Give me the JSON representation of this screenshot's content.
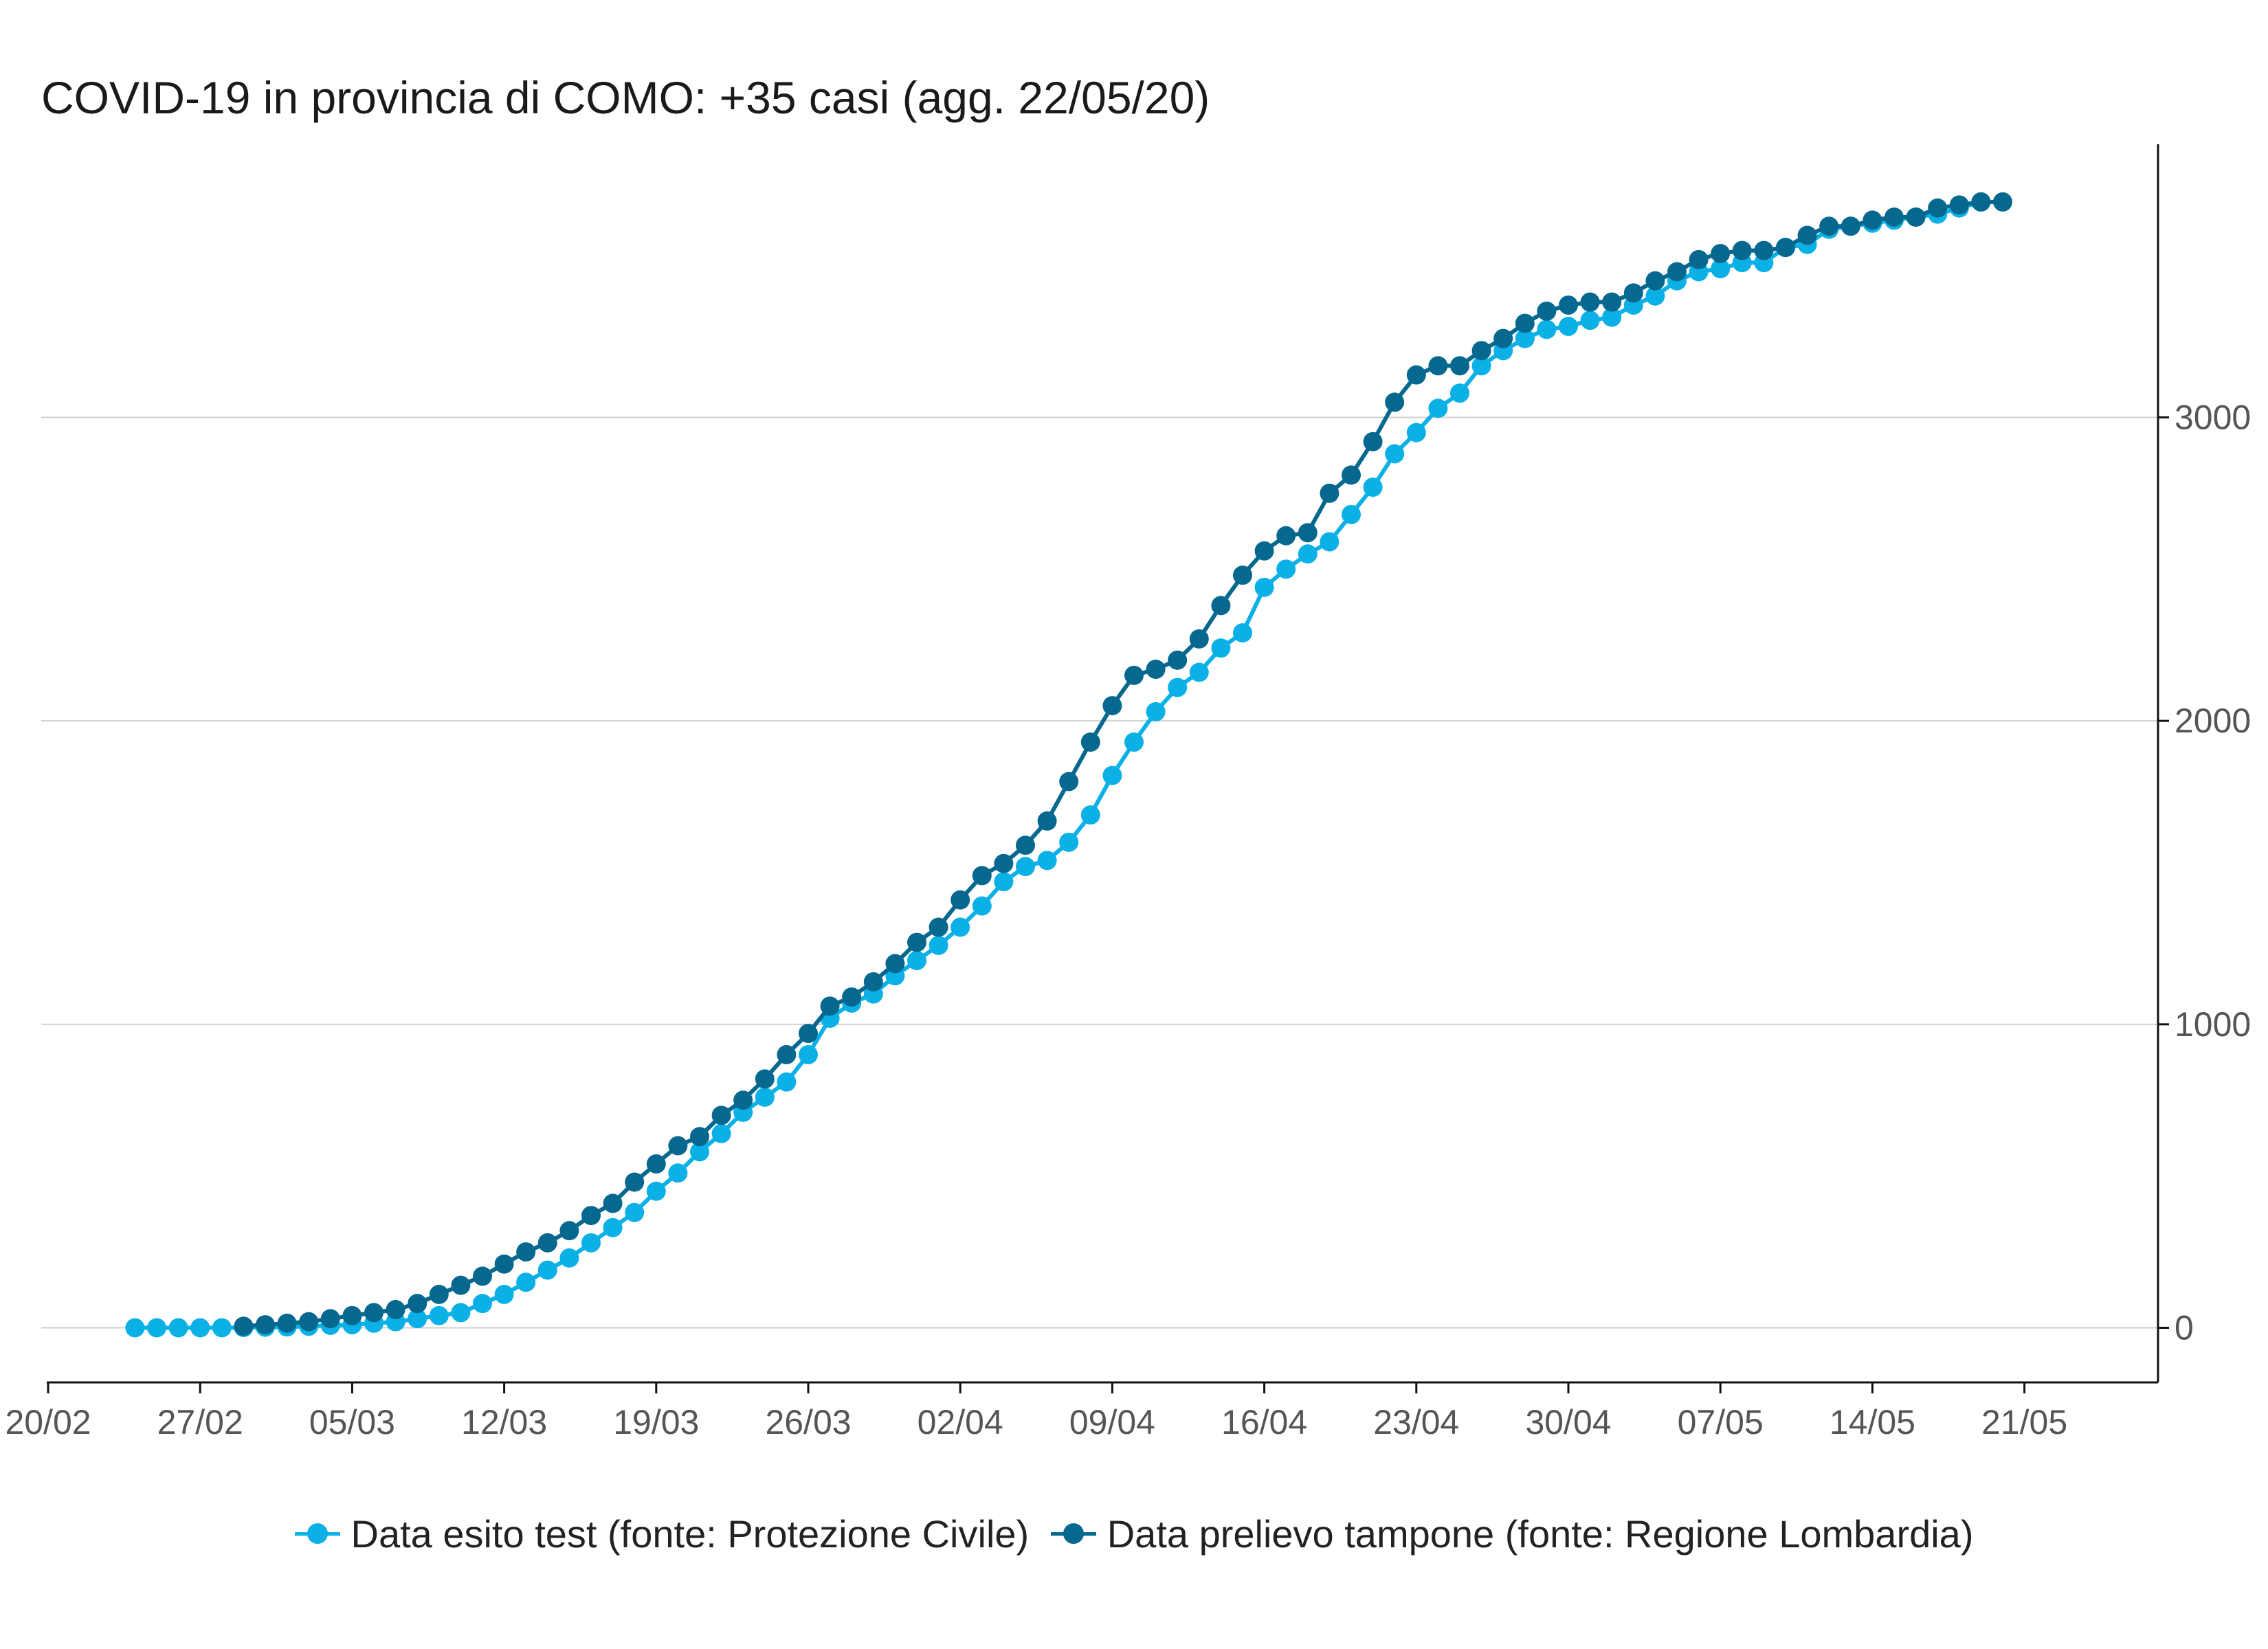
{
  "chart_data": {
    "type": "line",
    "title": "COVID-19 in provincia di COMO: +35 casi (agg. 22/05/20)",
    "x_start_date": "2020-02-24",
    "x_tick_labels": [
      "20/02",
      "27/02",
      "05/03",
      "12/03",
      "19/03",
      "26/03",
      "02/04",
      "09/04",
      "16/04",
      "23/04",
      "30/04",
      "07/05",
      "14/05",
      "21/05"
    ],
    "y_tick_labels": [
      "0",
      "1000",
      "2000",
      "3000"
    ],
    "y_axis_position": "right",
    "ylim": [
      -180,
      3900
    ],
    "grid": "horizontal",
    "legend_position": "bottom",
    "series": [
      {
        "name": "Data esito test (fonte: Protezione Civile)",
        "color": "#0ab0e6",
        "values": [
          0,
          0,
          0,
          0,
          0,
          1,
          2,
          3,
          5,
          8,
          10,
          15,
          20,
          30,
          40,
          50,
          80,
          110,
          150,
          190,
          230,
          280,
          330,
          380,
          450,
          510,
          580,
          640,
          710,
          760,
          810,
          900,
          1020,
          1070,
          1100,
          1160,
          1210,
          1260,
          1320,
          1390,
          1470,
          1520,
          1540,
          1600,
          1690,
          1820,
          1930,
          2030,
          2110,
          2160,
          2240,
          2290,
          2440,
          2500,
          2550,
          2590,
          2680,
          2770,
          2880,
          2950,
          3030,
          3080,
          3170,
          3220,
          3260,
          3290,
          3300,
          3320,
          3330,
          3370,
          3400,
          3450,
          3480,
          3490,
          3510,
          3510,
          3560,
          3570,
          3620,
          3630,
          3640,
          3650,
          3660,
          3670,
          3690,
          3710
        ]
      },
      {
        "name": "Data prelievo tampone (fonte: Regione Lombardia)",
        "color": "#06688e",
        "values": [
          null,
          null,
          null,
          null,
          null,
          5,
          10,
          15,
          20,
          30,
          40,
          50,
          60,
          80,
          110,
          140,
          170,
          210,
          250,
          280,
          320,
          370,
          410,
          480,
          540,
          600,
          630,
          700,
          750,
          820,
          900,
          970,
          1060,
          1090,
          1140,
          1200,
          1270,
          1320,
          1410,
          1490,
          1530,
          1590,
          1670,
          1800,
          1930,
          2050,
          2150,
          2170,
          2200,
          2270,
          2380,
          2480,
          2560,
          2610,
          2620,
          2750,
          2810,
          2920,
          3050,
          3140,
          3170,
          3170,
          3220,
          3260,
          3310,
          3350,
          3370,
          3380,
          3380,
          3410,
          3450,
          3480,
          3520,
          3540,
          3550,
          3550,
          3560,
          3600,
          3630,
          3630,
          3650,
          3660,
          3660,
          3690,
          3700,
          3710,
          3710
        ]
      }
    ]
  }
}
